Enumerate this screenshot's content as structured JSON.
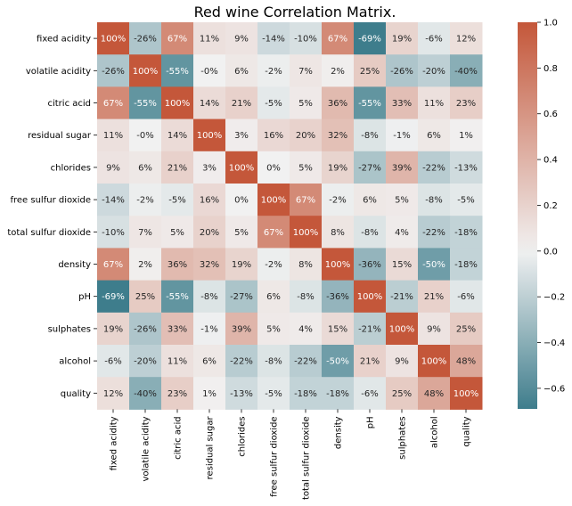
{
  "chart_data": {
    "type": "heatmap",
    "title": "Red wine Correlation Matrix.",
    "labels": [
      "fixed acidity",
      "volatile acidity",
      "citric acid",
      "residual sugar",
      "chlorides",
      "free sulfur dioxide",
      "total sulfur dioxide",
      "density",
      "pH",
      "sulphates",
      "alcohol",
      "quality"
    ],
    "values": [
      [
        1.0,
        -0.26,
        0.67,
        0.11,
        0.09,
        -0.14,
        -0.1,
        0.67,
        -0.69,
        0.19,
        -0.06,
        0.12
      ],
      [
        -0.26,
        1.0,
        -0.55,
        -0.0,
        0.06,
        -0.02,
        0.07,
        0.02,
        0.25,
        -0.26,
        -0.2,
        -0.4
      ],
      [
        0.67,
        -0.55,
        1.0,
        0.14,
        0.21,
        -0.05,
        0.05,
        0.36,
        -0.55,
        0.33,
        0.11,
        0.23
      ],
      [
        0.11,
        -0.0,
        0.14,
        1.0,
        0.03,
        0.16,
        0.2,
        0.32,
        -0.08,
        -0.01,
        0.06,
        0.01
      ],
      [
        0.09,
        0.06,
        0.21,
        0.03,
        1.0,
        0.0,
        0.05,
        0.19,
        -0.27,
        0.39,
        -0.22,
        -0.13
      ],
      [
        -0.14,
        -0.02,
        -0.05,
        0.16,
        0.0,
        1.0,
        0.67,
        -0.02,
        0.06,
        0.05,
        -0.08,
        -0.05
      ],
      [
        -0.1,
        0.07,
        0.05,
        0.2,
        0.05,
        0.67,
        1.0,
        0.08,
        -0.08,
        0.04,
        -0.22,
        -0.18
      ],
      [
        0.67,
        0.02,
        0.36,
        0.32,
        0.19,
        -0.02,
        0.08,
        1.0,
        -0.36,
        0.15,
        -0.5,
        -0.18
      ],
      [
        -0.69,
        0.25,
        -0.55,
        -0.08,
        -0.27,
        0.06,
        -0.08,
        -0.36,
        1.0,
        -0.21,
        0.21,
        -0.06
      ],
      [
        0.19,
        -0.26,
        0.33,
        -0.01,
        0.39,
        0.05,
        0.04,
        0.15,
        -0.21,
        1.0,
        0.09,
        0.25
      ],
      [
        -0.06,
        -0.2,
        0.11,
        0.06,
        -0.22,
        -0.08,
        -0.22,
        -0.5,
        0.21,
        0.09,
        1.0,
        0.48
      ],
      [
        0.12,
        -0.4,
        0.23,
        0.01,
        -0.13,
        -0.05,
        -0.18,
        -0.18,
        -0.06,
        0.25,
        0.48,
        1.0
      ]
    ],
    "cell_labels": [
      [
        "100%",
        "-26%",
        "67%",
        "11%",
        "9%",
        "-14%",
        "-10%",
        "67%",
        "-69%",
        "19%",
        "-6%",
        "12%"
      ],
      [
        "-26%",
        "100%",
        "-55%",
        "-0%",
        "6%",
        "-2%",
        "7%",
        "2%",
        "25%",
        "-26%",
        "-20%",
        "-40%"
      ],
      [
        "67%",
        "-55%",
        "100%",
        "14%",
        "21%",
        "-5%",
        "5%",
        "36%",
        "-55%",
        "33%",
        "11%",
        "23%"
      ],
      [
        "11%",
        "-0%",
        "14%",
        "100%",
        "3%",
        "16%",
        "20%",
        "32%",
        "-8%",
        "-1%",
        "6%",
        "1%"
      ],
      [
        "9%",
        "6%",
        "21%",
        "3%",
        "100%",
        "0%",
        "5%",
        "19%",
        "-27%",
        "39%",
        "-22%",
        "-13%"
      ],
      [
        "-14%",
        "-2%",
        "-5%",
        "16%",
        "0%",
        "100%",
        "67%",
        "-2%",
        "6%",
        "5%",
        "-8%",
        "-5%"
      ],
      [
        "-10%",
        "7%",
        "5%",
        "20%",
        "5%",
        "67%",
        "100%",
        "8%",
        "-8%",
        "4%",
        "-22%",
        "-18%"
      ],
      [
        "67%",
        "2%",
        "36%",
        "32%",
        "19%",
        "-2%",
        "8%",
        "100%",
        "-36%",
        "15%",
        "-50%",
        "-18%"
      ],
      [
        "-69%",
        "25%",
        "-55%",
        "-8%",
        "-27%",
        "6%",
        "-8%",
        "-36%",
        "100%",
        "-21%",
        "21%",
        "-6%"
      ],
      [
        "19%",
        "-26%",
        "33%",
        "-1%",
        "39%",
        "5%",
        "4%",
        "15%",
        "-21%",
        "100%",
        "9%",
        "25%"
      ],
      [
        "-6%",
        "-20%",
        "11%",
        "6%",
        "-22%",
        "-8%",
        "-22%",
        "-50%",
        "21%",
        "9%",
        "100%",
        "48%"
      ],
      [
        "12%",
        "-40%",
        "23%",
        "1%",
        "-13%",
        "-5%",
        "-18%",
        "-18%",
        "-6%",
        "25%",
        "48%",
        "100%"
      ]
    ],
    "colorbar": {
      "vmin": -0.69,
      "vmax": 1.0,
      "ticks": [
        -0.6,
        -0.4,
        -0.2,
        0.0,
        0.2,
        0.4,
        0.6,
        0.8,
        1.0
      ],
      "tick_labels": [
        "−0.6",
        "−0.4",
        "−0.2",
        "0.0",
        "0.2",
        "0.4",
        "0.6",
        "0.8",
        "1.0"
      ]
    },
    "colors": {
      "negative": "#3e7d8c",
      "neutral": "#f1f1f1",
      "positive": "#c4573a"
    }
  }
}
